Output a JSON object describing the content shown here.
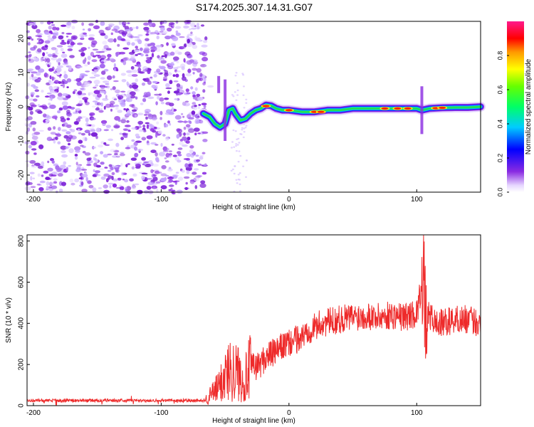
{
  "title": "S174.2025.307.14.31.G07",
  "colors": {
    "snr_line": "#ee2a2a",
    "axis": "#000000",
    "scatter_base": "#8a2be2"
  },
  "chart_data": [
    {
      "type": "heatmap",
      "title": "S174.2025.307.14.31.G07",
      "xlabel": "Height of straight line (km)",
      "ylabel": "Frequency (Hz)",
      "xlim": [
        -205,
        150
      ],
      "ylim": [
        -25,
        25
      ],
      "xticks": [
        -200,
        -100,
        0,
        100
      ],
      "yticks": [
        -20,
        -10,
        0,
        10,
        20
      ],
      "colorbar": {
        "label": "Normalized spectral amplitude",
        "range": [
          0,
          1
        ],
        "ticks": [
          0.0,
          0.2,
          0.4,
          0.6,
          0.8
        ]
      },
      "noise_region": {
        "x_from": -205,
        "x_to": -65,
        "description": "broadband noise"
      },
      "signal_track": {
        "x": [
          -67,
          -62,
          -58,
          -54,
          -50,
          -47,
          -44,
          -42,
          -38,
          -34,
          -30,
          -26,
          -22,
          -18,
          -14,
          -10,
          -5,
          0,
          10,
          20,
          30,
          40,
          50,
          60,
          70,
          80,
          90,
          100,
          104,
          110,
          120,
          130,
          140,
          150
        ],
        "y": [
          -2,
          -3,
          -5,
          -6,
          -5,
          -1,
          -0.5,
          -2,
          -4,
          -3.5,
          -2,
          -1,
          -0.5,
          0.5,
          0.3,
          -0.5,
          -1,
          -1,
          -1.5,
          -1.5,
          -1,
          -1,
          -0.5,
          -0.5,
          -0.5,
          -0.5,
          -0.5,
          -0.5,
          -1,
          -0.5,
          -0.3,
          -0.2,
          -0.2,
          0
        ]
      }
    },
    {
      "type": "line",
      "xlabel": "Height of straight line (km)",
      "ylabel": "SNR (10 * v/v)",
      "xlim": [
        -205,
        150
      ],
      "ylim": [
        0,
        830
      ],
      "xticks": [
        -200,
        -100,
        0,
        100
      ],
      "yticks": [
        0,
        200,
        400,
        600,
        800
      ],
      "series": [
        {
          "name": "SNR",
          "x": [
            -205,
            -180,
            -160,
            -140,
            -120,
            -100,
            -80,
            -66,
            -60,
            -55,
            -50,
            -45,
            -40,
            -35,
            -30,
            -25,
            -20,
            -15,
            -10,
            -5,
            0,
            5,
            10,
            15,
            20,
            25,
            30,
            40,
            50,
            60,
            70,
            80,
            90,
            95,
            100,
            103,
            105,
            106,
            107,
            108,
            110,
            115,
            120,
            130,
            140,
            150
          ],
          "y": [
            25,
            25,
            25,
            25,
            25,
            25,
            25,
            25,
            60,
            90,
            150,
            180,
            160,
            120,
            190,
            190,
            220,
            250,
            260,
            290,
            300,
            320,
            330,
            370,
            380,
            400,
            405,
            420,
            430,
            440,
            430,
            440,
            430,
            440,
            450,
            550,
            700,
            500,
            350,
            420,
            440,
            400,
            400,
            420,
            420,
            400
          ]
        }
      ]
    }
  ]
}
